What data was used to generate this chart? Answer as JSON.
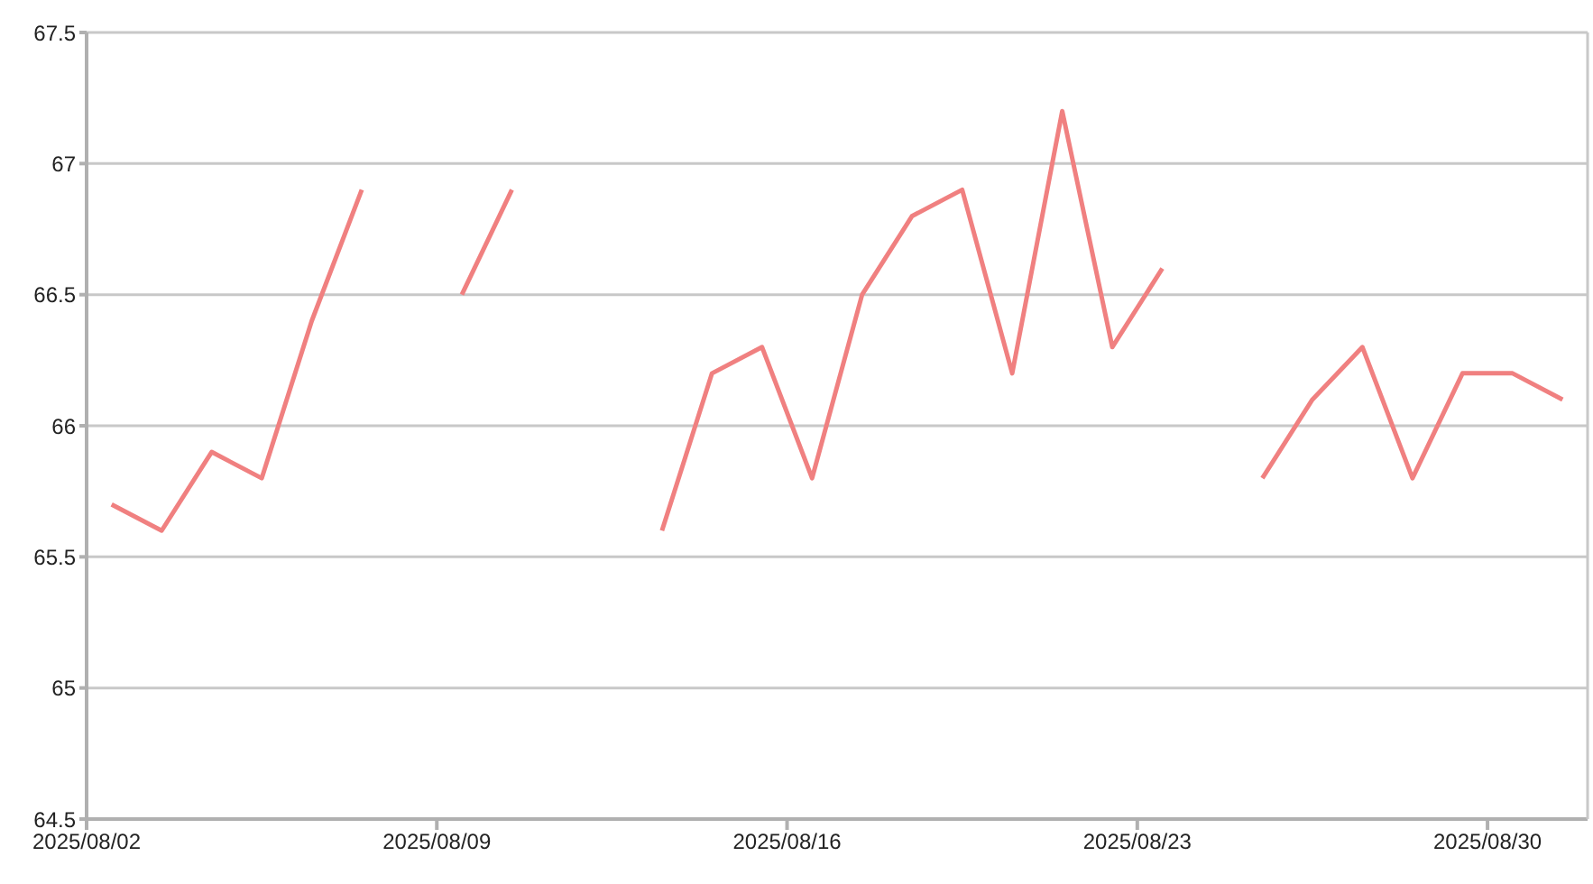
{
  "chart_data": {
    "type": "line",
    "x": [
      "2025-08-02T12:00",
      "2025-08-03T12:00",
      "2025-08-04T12:00",
      "2025-08-05T12:00",
      "2025-08-06T12:00",
      "2025-08-07T12:00",
      "2025-08-08T12:00",
      "2025-08-09T12:00",
      "2025-08-10T12:00",
      "2025-08-11T12:00",
      "2025-08-12T12:00",
      "2025-08-13T12:00",
      "2025-08-14T12:00",
      "2025-08-15T12:00",
      "2025-08-16T12:00",
      "2025-08-17T12:00",
      "2025-08-18T12:00",
      "2025-08-19T12:00",
      "2025-08-20T12:00",
      "2025-08-21T12:00",
      "2025-08-22T12:00",
      "2025-08-23T12:00",
      "2025-08-24T12:00",
      "2025-08-25T12:00",
      "2025-08-26T12:00",
      "2025-08-27T12:00",
      "2025-08-28T12:00",
      "2025-08-29T12:00",
      "2025-08-30T12:00",
      "2025-08-31T12:00"
    ],
    "series": [
      {
        "color": "#f08080",
        "values": [
          65.7,
          65.6,
          65.9,
          65.8,
          66.4,
          66.9,
          null,
          66.5,
          66.9,
          null,
          null,
          65.6,
          66.2,
          66.3,
          65.8,
          66.5,
          66.8,
          66.9,
          66.2,
          67.2,
          66.3,
          66.6,
          null,
          65.8,
          66.1,
          66.3,
          65.8,
          66.2,
          66.2,
          66.1
        ]
      }
    ],
    "xlim": [
      "2025-08-02",
      "2025-09-01"
    ],
    "xticks": [
      {
        "value": "2025-08-02",
        "label": "2025/08/02"
      },
      {
        "value": "2025-08-09",
        "label": "2025/08/09"
      },
      {
        "value": "2025-08-16",
        "label": "2025/08/16"
      },
      {
        "value": "2025-08-23",
        "label": "2025/08/23"
      },
      {
        "value": "2025-08-30",
        "label": "2025/08/30"
      }
    ],
    "ylim": [
      64.5,
      67.5
    ],
    "yticks": [
      64.5,
      65,
      65.5,
      66,
      66.5,
      67,
      67.5
    ],
    "grid": "y",
    "marker": "none",
    "line_style": "solid"
  }
}
